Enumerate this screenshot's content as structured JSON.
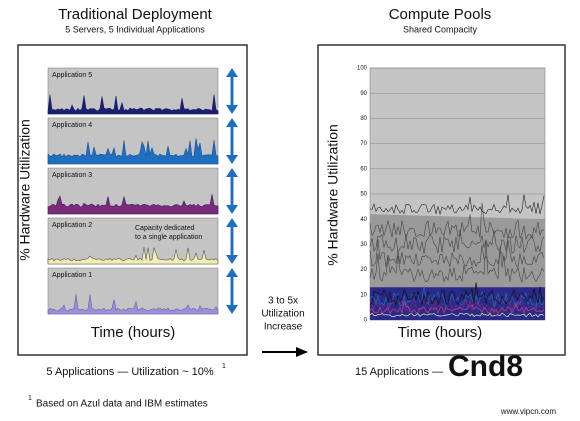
{
  "left_panel": {
    "title": "Traditional Deployment",
    "subtitle": "5 Servers, 5 Individual Applications",
    "y_axis_label": "% Hardware Utilization",
    "x_axis_label": "Time (hours)",
    "charts": [
      {
        "label": "Application 5"
      },
      {
        "label": "Application 4"
      },
      {
        "label": "Application 3"
      },
      {
        "label": "Application 2"
      },
      {
        "label": "Application 1"
      }
    ],
    "annotation": [
      "Capacity dedicated",
      "to a single application"
    ]
  },
  "arrow_label": [
    "3 to 5x",
    "Utilization",
    "Increase"
  ],
  "right_panel": {
    "title": "Compute Pools",
    "subtitle": "Shared Compacity",
    "y_axis_label": "% Hardware Utilization",
    "x_axis_label": "Time (hours)",
    "yticks": [
      0,
      10,
      20,
      30,
      40,
      50,
      60,
      70,
      80,
      90,
      100
    ]
  },
  "footer": {
    "left": "5 Applications — Utilization ~ 10%",
    "left_superscript": "1",
    "right": "15 Applications —",
    "footnote_marker": "1",
    "footnote": "Based on Azul data and IBM estimates"
  },
  "watermark": {
    "logo": "Cnd8",
    "url": "www.vipcn.com"
  }
}
